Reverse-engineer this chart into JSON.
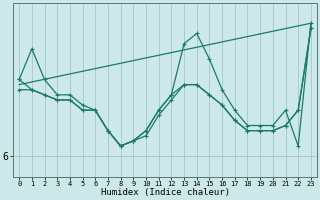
{
  "xlabel": "Humidex (Indice chaleur)",
  "background_color": "#cce8e8",
  "grid_color": "#aacccc",
  "line_color": "#1a7a6a",
  "x_values": [
    0,
    1,
    2,
    3,
    4,
    5,
    6,
    7,
    8,
    9,
    10,
    11,
    12,
    13,
    14,
    15,
    16,
    17,
    18,
    19,
    20,
    21,
    22,
    23
  ],
  "series1": [
    7.5,
    8.1,
    7.5,
    7.2,
    7.2,
    7.0,
    6.9,
    6.5,
    6.2,
    6.3,
    6.5,
    6.9,
    7.2,
    8.2,
    8.4,
    7.9,
    7.3,
    6.9,
    6.6,
    6.6,
    6.6,
    6.9,
    6.2,
    8.6
  ],
  "series2": [
    7.3,
    7.3,
    7.2,
    7.1,
    7.1,
    6.9,
    6.9,
    6.5,
    6.2,
    6.3,
    6.4,
    6.8,
    7.1,
    7.4,
    7.4,
    7.2,
    7.0,
    6.7,
    6.5,
    6.5,
    6.5,
    6.6,
    6.9,
    8.5
  ],
  "series3": [
    7.5,
    7.3,
    7.2,
    7.1,
    7.1,
    6.9,
    6.9,
    6.5,
    6.2,
    6.3,
    6.5,
    6.9,
    7.2,
    7.4,
    7.4,
    7.2,
    7.0,
    6.7,
    6.5,
    6.5,
    6.5,
    6.6,
    6.9,
    8.5
  ],
  "ytick_val": 6.0,
  "ytick_label": "6",
  "ylim": [
    5.6,
    9.0
  ],
  "xlim": [
    -0.5,
    23.5
  ]
}
